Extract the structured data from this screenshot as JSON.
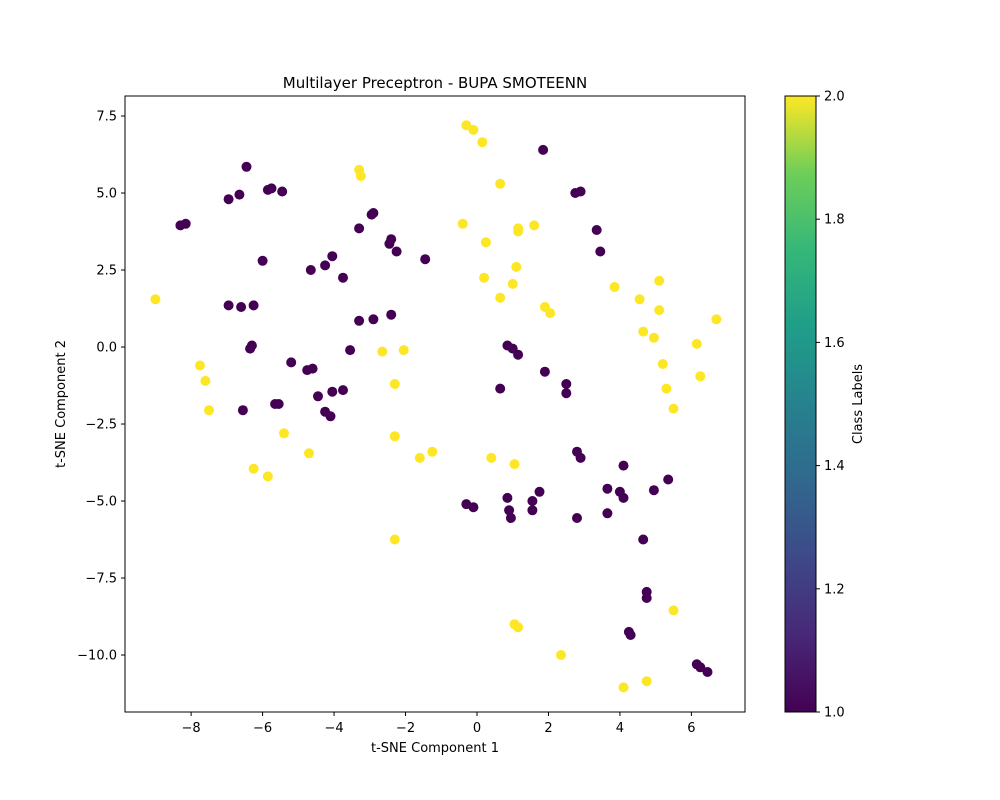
{
  "chart_data": {
    "type": "scatter",
    "title": "Multilayer Preceptron - BUPA SMOTEENN",
    "xlabel": "t-SNE Component 1",
    "ylabel": "t-SNE Component 2",
    "xlim": [
      -9.85,
      7.5
    ],
    "ylim": [
      -11.85,
      8.15
    ],
    "xticks": [
      -8,
      -6,
      -4,
      -2,
      0,
      2,
      4,
      6
    ],
    "xtick_labels": [
      "−8",
      "−6",
      "−4",
      "−2",
      "0",
      "2",
      "4",
      "6"
    ],
    "yticks": [
      7.5,
      5.0,
      2.5,
      0.0,
      -2.5,
      -5.0,
      -7.5,
      -10.0
    ],
    "ytick_labels": [
      "7.5",
      "5.0",
      "2.5",
      "0.0",
      "−2.5",
      "−5.0",
      "−7.5",
      "−10.0"
    ],
    "grid": false,
    "colorbar": {
      "label": "Class Labels",
      "range": [
        1.0,
        2.0
      ],
      "colormap": "viridis",
      "ticks": [
        1.0,
        1.2,
        1.4,
        1.6,
        1.8,
        2.0
      ],
      "tick_labels": [
        "1.0",
        "1.2",
        "1.4",
        "1.6",
        "1.8",
        "2.0"
      ]
    },
    "colors": {
      "class_1": "#440154",
      "class_2": "#fde725"
    },
    "points": [
      [
        -8.3,
        3.95,
        1
      ],
      [
        -8.15,
        4.0,
        1
      ],
      [
        -6.95,
        4.8,
        1
      ],
      [
        -6.65,
        4.95,
        1
      ],
      [
        -6.45,
        5.85,
        1
      ],
      [
        -5.85,
        5.1,
        1
      ],
      [
        -5.75,
        5.15,
        1
      ],
      [
        -5.45,
        5.05,
        1
      ],
      [
        -3.3,
        3.85,
        1
      ],
      [
        -2.95,
        4.3,
        1
      ],
      [
        -2.9,
        4.35,
        1
      ],
      [
        -6.0,
        2.8,
        1
      ],
      [
        -4.65,
        2.5,
        1
      ],
      [
        -4.25,
        2.65,
        1
      ],
      [
        -4.05,
        2.95,
        1
      ],
      [
        -3.75,
        2.25,
        1
      ],
      [
        -2.45,
        3.35,
        1
      ],
      [
        -2.4,
        3.5,
        1
      ],
      [
        -2.25,
        3.1,
        1
      ],
      [
        -1.45,
        2.85,
        1
      ],
      [
        -6.95,
        1.35,
        1
      ],
      [
        -6.6,
        1.3,
        1
      ],
      [
        -6.25,
        1.35,
        1
      ],
      [
        -6.35,
        -0.05,
        1
      ],
      [
        -6.3,
        0.05,
        1
      ],
      [
        -5.2,
        -0.5,
        1
      ],
      [
        -4.75,
        -0.75,
        1
      ],
      [
        -4.6,
        -0.7,
        1
      ],
      [
        -3.3,
        0.85,
        1
      ],
      [
        -2.9,
        0.9,
        1
      ],
      [
        -2.4,
        1.05,
        1
      ],
      [
        -3.55,
        -0.1,
        1
      ],
      [
        -4.45,
        -1.6,
        1
      ],
      [
        -3.75,
        -1.4,
        1
      ],
      [
        -4.05,
        -1.45,
        1
      ],
      [
        -5.65,
        -1.85,
        1
      ],
      [
        -5.55,
        -1.85,
        1
      ],
      [
        -6.55,
        -2.05,
        1
      ],
      [
        -4.25,
        -2.1,
        1
      ],
      [
        -4.1,
        -2.25,
        1
      ],
      [
        1.85,
        6.4,
        1
      ],
      [
        2.75,
        5.0,
        1
      ],
      [
        2.9,
        5.05,
        1
      ],
      [
        3.35,
        3.8,
        1
      ],
      [
        3.45,
        3.1,
        1
      ],
      [
        0.85,
        0.05,
        1
      ],
      [
        1.0,
        -0.05,
        1
      ],
      [
        1.15,
        -0.25,
        1
      ],
      [
        0.65,
        -1.35,
        1
      ],
      [
        1.9,
        -0.8,
        1
      ],
      [
        2.5,
        -1.2,
        1
      ],
      [
        2.5,
        -1.5,
        1
      ],
      [
        2.8,
        -3.4,
        1
      ],
      [
        2.9,
        -3.6,
        1
      ],
      [
        4.1,
        -3.85,
        1
      ],
      [
        3.65,
        -4.6,
        1
      ],
      [
        4.0,
        -4.7,
        1
      ],
      [
        4.1,
        -4.9,
        1
      ],
      [
        4.95,
        -4.65,
        1
      ],
      [
        5.35,
        -4.3,
        1
      ],
      [
        1.75,
        -4.7,
        1
      ],
      [
        1.55,
        -5.0,
        1
      ],
      [
        0.85,
        -4.9,
        1
      ],
      [
        0.9,
        -5.3,
        1
      ],
      [
        0.95,
        -5.55,
        1
      ],
      [
        1.55,
        -5.3,
        1
      ],
      [
        -0.3,
        -5.1,
        1
      ],
      [
        -0.1,
        -5.2,
        1
      ],
      [
        2.8,
        -5.55,
        1
      ],
      [
        3.65,
        -5.4,
        1
      ],
      [
        4.65,
        -6.25,
        1
      ],
      [
        4.75,
        -7.95,
        1
      ],
      [
        4.75,
        -8.15,
        1
      ],
      [
        4.25,
        -9.25,
        1
      ],
      [
        4.3,
        -9.35,
        1
      ],
      [
        6.15,
        -10.3,
        1
      ],
      [
        6.25,
        -10.4,
        1
      ],
      [
        6.45,
        -10.55,
        1
      ],
      [
        -0.3,
        7.2,
        2
      ],
      [
        -0.1,
        7.05,
        2
      ],
      [
        0.15,
        6.65,
        2
      ],
      [
        0.65,
        5.3,
        2
      ],
      [
        -3.3,
        5.75,
        2
      ],
      [
        -3.25,
        5.55,
        2
      ],
      [
        -0.4,
        4.0,
        2
      ],
      [
        0.25,
        3.4,
        2
      ],
      [
        1.15,
        3.75,
        2
      ],
      [
        1.15,
        3.85,
        2
      ],
      [
        1.6,
        3.95,
        2
      ],
      [
        0.2,
        2.25,
        2
      ],
      [
        1.1,
        2.6,
        2
      ],
      [
        1.0,
        2.05,
        2
      ],
      [
        0.65,
        1.6,
        2
      ],
      [
        1.9,
        1.3,
        2
      ],
      [
        2.05,
        1.1,
        2
      ],
      [
        3.85,
        1.95,
        2
      ],
      [
        5.1,
        2.15,
        2
      ],
      [
        4.55,
        1.55,
        2
      ],
      [
        5.1,
        1.2,
        2
      ],
      [
        4.65,
        0.5,
        2
      ],
      [
        4.95,
        0.3,
        2
      ],
      [
        6.7,
        0.9,
        2
      ],
      [
        6.15,
        0.1,
        2
      ],
      [
        5.2,
        -0.55,
        2
      ],
      [
        5.3,
        -1.35,
        2
      ],
      [
        6.25,
        -0.95,
        2
      ],
      [
        5.5,
        -2.0,
        2
      ],
      [
        -9.0,
        1.55,
        2
      ],
      [
        -7.75,
        -0.6,
        2
      ],
      [
        -7.6,
        -1.1,
        2
      ],
      [
        -7.5,
        -2.05,
        2
      ],
      [
        -2.65,
        -0.15,
        2
      ],
      [
        -2.05,
        -0.1,
        2
      ],
      [
        -2.3,
        -1.2,
        2
      ],
      [
        -2.3,
        -2.9,
        2
      ],
      [
        -5.4,
        -2.8,
        2
      ],
      [
        -4.7,
        -3.45,
        2
      ],
      [
        -6.25,
        -3.95,
        2
      ],
      [
        -5.85,
        -4.2,
        2
      ],
      [
        -1.6,
        -3.6,
        2
      ],
      [
        -1.25,
        -3.4,
        2
      ],
      [
        0.4,
        -3.6,
        2
      ],
      [
        1.05,
        -3.8,
        2
      ],
      [
        -2.3,
        -6.25,
        2
      ],
      [
        1.05,
        -9.0,
        2
      ],
      [
        1.15,
        -9.1,
        2
      ],
      [
        2.35,
        -10.0,
        2
      ],
      [
        5.5,
        -8.55,
        2
      ],
      [
        4.75,
        -10.85,
        2
      ],
      [
        4.1,
        -11.05,
        2
      ]
    ]
  }
}
